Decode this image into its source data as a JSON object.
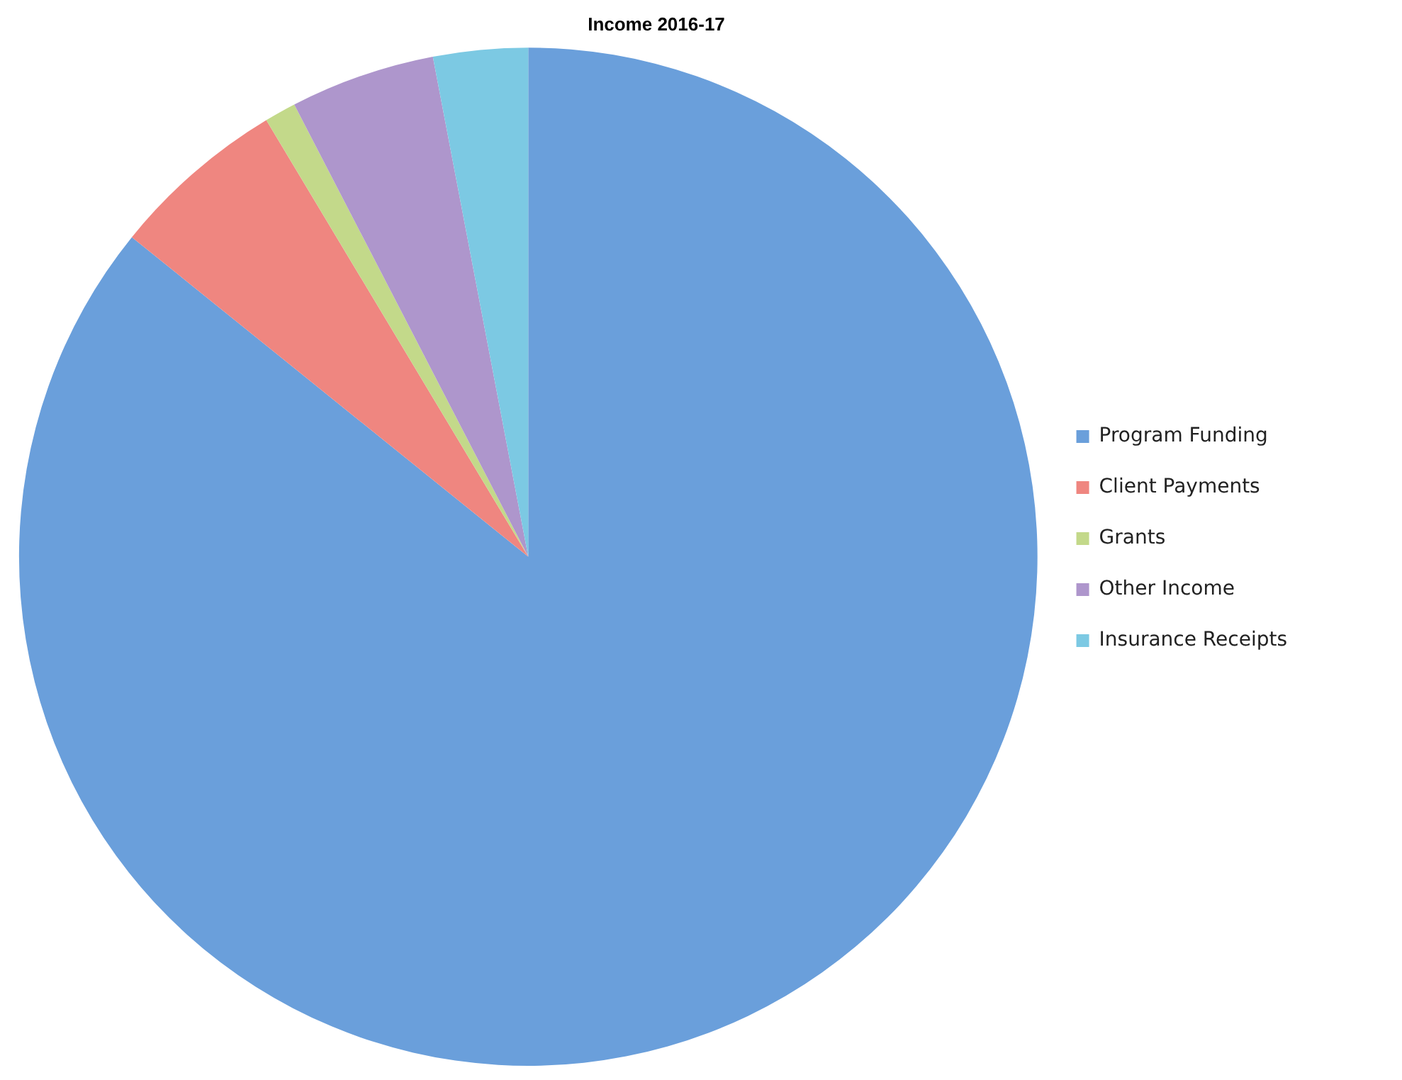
{
  "chart_data": {
    "type": "pie",
    "title": "Income 2016-17",
    "categories": [
      "Program Funding",
      "Client Payments",
      "Grants",
      "Other Income",
      "Insurance Receipts"
    ],
    "values": [
      85.8,
      5.6,
      1.0,
      4.6,
      3.0
    ],
    "colors": [
      "#6a9fdb",
      "#ef8680",
      "#c3d98a",
      "#ae96cc",
      "#7cc9e3"
    ],
    "legend": "right"
  }
}
